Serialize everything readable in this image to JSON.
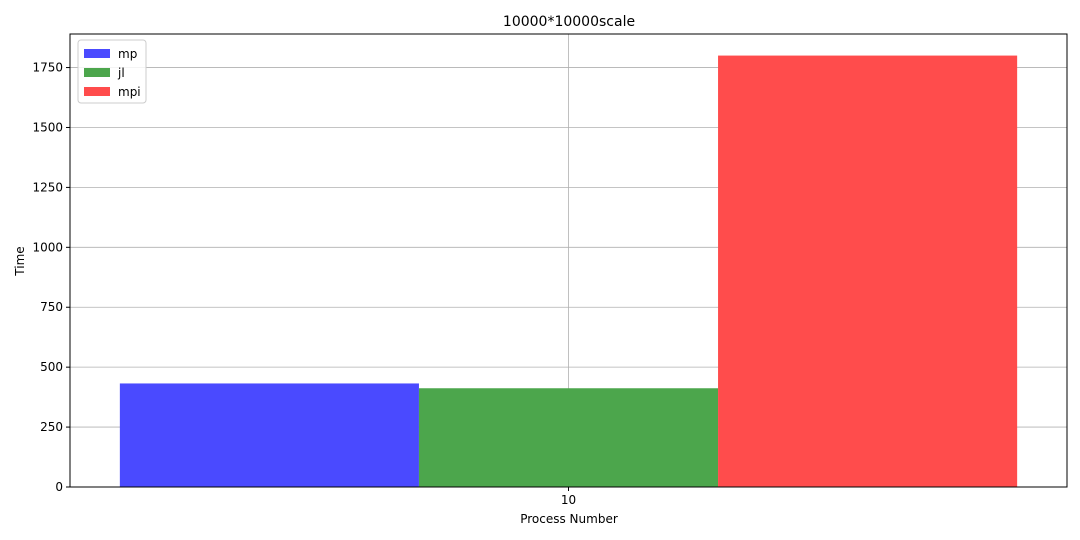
{
  "chart_data": {
    "type": "bar",
    "title": "10000*10000scale",
    "xlabel": "Process Number",
    "ylabel": "Time",
    "categories": [
      "10"
    ],
    "series": [
      {
        "name": "mp",
        "values": [
          432
        ],
        "color": "#4a4aff"
      },
      {
        "name": "jl",
        "values": [
          412
        ],
        "color": "#4ca64c"
      },
      {
        "name": "mpi",
        "values": [
          1800
        ],
        "color": "#ff4c4c"
      }
    ],
    "ylim": [
      0,
      1890
    ],
    "yticks": [
      0,
      250,
      500,
      750,
      1000,
      1250,
      1500,
      1750
    ],
    "grid": true,
    "legend_position": "top-left"
  }
}
